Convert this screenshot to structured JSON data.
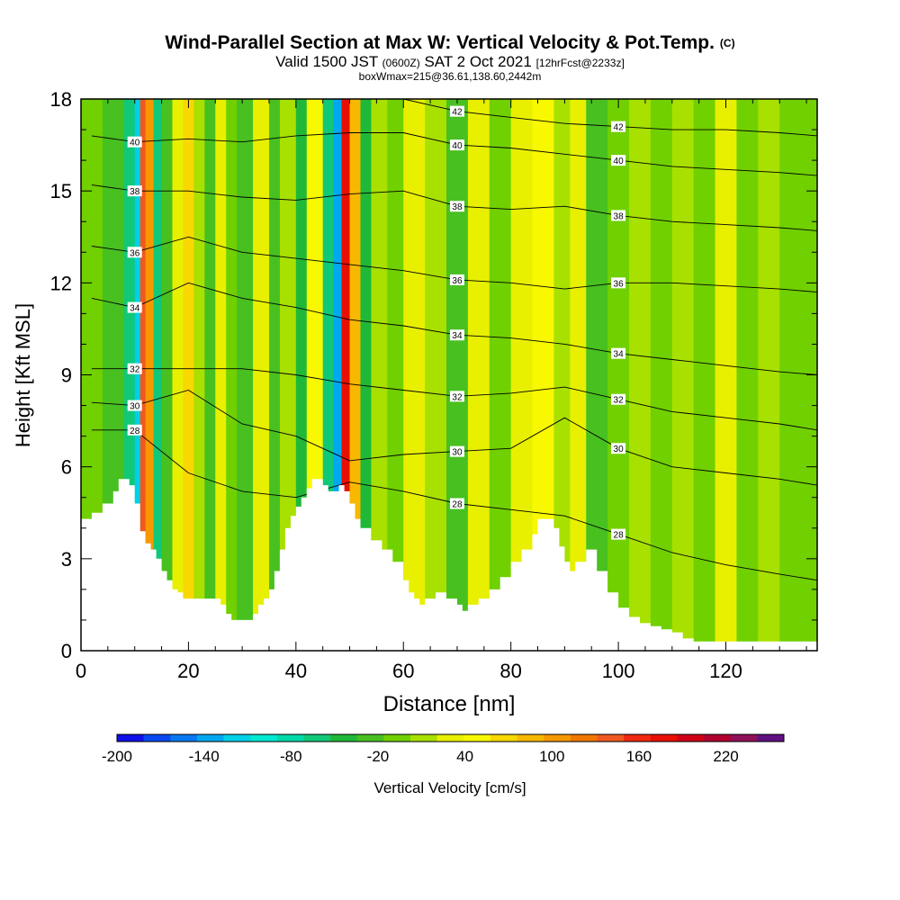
{
  "title": {
    "main": "Wind-Parallel Section at Max W: Vertical Velocity & Pot.Temp.",
    "copyright": "(C)",
    "valid_prefix": "Valid 1500 JST",
    "valid_utc": "(0600Z)",
    "valid_date": "SAT 2 Oct 2021",
    "forecast": "[12hrFcst@2233z]",
    "box_info": "boxWmax=215@36.61,138.60,2442m"
  },
  "chart_data": {
    "type": "heatmap",
    "xlabel": "Distance [nm]",
    "ylabel": "Height [Kft MSL]",
    "xlim": [
      0,
      137
    ],
    "ylim": [
      0,
      18
    ],
    "x_ticks": [
      0,
      20,
      40,
      60,
      80,
      100,
      120
    ],
    "y_ticks": [
      0,
      3,
      6,
      9,
      12,
      15,
      18
    ],
    "colorbar": {
      "label": "Vertical Velocity [cm/s]",
      "tick_labels": [
        "-200",
        "-140",
        "-80",
        "-20",
        "40",
        "100",
        "160",
        "220"
      ],
      "tick_values": [
        -200,
        -140,
        -80,
        -20,
        40,
        100,
        160,
        220
      ],
      "min": -200,
      "max": 260,
      "step": 20,
      "colors": [
        "#1010e8",
        "#0848f0",
        "#0878f0",
        "#00a8f0",
        "#00d0e8",
        "#00e8d0",
        "#00d8a8",
        "#10c878",
        "#20b838",
        "#48c020",
        "#70d000",
        "#a8e000",
        "#e8f000",
        "#f8f800",
        "#f8d800",
        "#f8b800",
        "#f89800",
        "#f07800",
        "#f05820",
        "#f02810",
        "#e81000",
        "#d00018",
        "#b00030",
        "#901058",
        "#601080"
      ]
    },
    "terrain_profile": {
      "x": [
        0,
        2,
        4,
        6,
        7,
        8,
        9,
        10,
        11,
        12,
        13,
        14,
        15,
        16,
        17,
        18,
        19,
        20,
        23,
        26,
        27,
        28,
        30,
        32,
        33,
        34,
        35,
        36,
        37,
        38,
        39,
        40,
        41,
        42,
        43,
        44,
        45,
        46,
        47,
        48,
        49,
        50,
        51,
        52,
        54,
        56,
        58,
        60,
        61,
        62,
        63,
        64,
        66,
        68,
        70,
        71,
        72,
        74,
        76,
        78,
        80,
        82,
        84,
        85,
        86,
        88,
        89,
        90,
        91,
        92,
        94,
        95,
        96,
        98,
        100,
        102,
        104,
        106,
        108,
        110,
        112,
        114,
        116,
        118,
        120,
        125,
        130,
        137
      ],
      "y": [
        4.3,
        4.5,
        4.8,
        5.2,
        5.6,
        5.6,
        5.4,
        4.8,
        3.9,
        3.5,
        3.3,
        3.0,
        2.6,
        2.3,
        2.0,
        1.9,
        1.7,
        1.7,
        1.7,
        1.5,
        1.2,
        1.0,
        1.0,
        1.2,
        1.5,
        1.7,
        2.0,
        2.6,
        3.3,
        4.0,
        4.4,
        4.7,
        5.0,
        5.3,
        5.6,
        5.6,
        5.4,
        5.2,
        5.2,
        5.4,
        5.2,
        4.8,
        4.3,
        4.0,
        3.6,
        3.3,
        2.9,
        2.3,
        1.9,
        1.7,
        1.5,
        1.7,
        1.9,
        1.7,
        1.5,
        1.3,
        1.5,
        1.7,
        2.0,
        2.4,
        2.9,
        3.3,
        3.8,
        4.3,
        4.3,
        4.0,
        3.4,
        2.9,
        2.6,
        2.9,
        3.3,
        3.3,
        2.6,
        1.9,
        1.4,
        1.1,
        0.9,
        0.8,
        0.7,
        0.6,
        0.4,
        0.3,
        0.3,
        0.3,
        0.3,
        0.3,
        0.3,
        0.3
      ]
    },
    "w_field_columns": [
      {
        "x": [
          0,
          4
        ],
        "value": 0
      },
      {
        "x": [
          4,
          8
        ],
        "value": -20
      },
      {
        "x": [
          8,
          10
        ],
        "value": -60
      },
      {
        "x": [
          10,
          11
        ],
        "value": -120
      },
      {
        "x": [
          11,
          12
        ],
        "value": 160
      },
      {
        "x": [
          12,
          13.5
        ],
        "value": 120
      },
      {
        "x": [
          13.5,
          15
        ],
        "value": -60
      },
      {
        "x": [
          15,
          17
        ],
        "value": -20
      },
      {
        "x": [
          17,
          19
        ],
        "value": 40
      },
      {
        "x": [
          19,
          21
        ],
        "value": 80
      },
      {
        "x": [
          21,
          23
        ],
        "value": 20
      },
      {
        "x": [
          23,
          25
        ],
        "value": -20
      },
      {
        "x": [
          25,
          27
        ],
        "value": 40
      },
      {
        "x": [
          27,
          29
        ],
        "value": 0
      },
      {
        "x": [
          29,
          32
        ],
        "value": -20
      },
      {
        "x": [
          32,
          35
        ],
        "value": 40
      },
      {
        "x": [
          35,
          37
        ],
        "value": -20
      },
      {
        "x": [
          37,
          40
        ],
        "value": 20
      },
      {
        "x": [
          40,
          42
        ],
        "value": -40
      },
      {
        "x": [
          42,
          45
        ],
        "value": 60
      },
      {
        "x": [
          45,
          47
        ],
        "value": -60
      },
      {
        "x": [
          47,
          48.5
        ],
        "value": -140
      },
      {
        "x": [
          48.5,
          50
        ],
        "value": 200
      },
      {
        "x": [
          50,
          52
        ],
        "value": 100
      },
      {
        "x": [
          52,
          54
        ],
        "value": -40
      },
      {
        "x": [
          54,
          57
        ],
        "value": 20
      },
      {
        "x": [
          57,
          60
        ],
        "value": 0
      },
      {
        "x": [
          60,
          64
        ],
        "value": 40
      },
      {
        "x": [
          64,
          68
        ],
        "value": 20
      },
      {
        "x": [
          68,
          72
        ],
        "value": -20
      },
      {
        "x": [
          72,
          76
        ],
        "value": 40
      },
      {
        "x": [
          76,
          80
        ],
        "value": 0
      },
      {
        "x": [
          80,
          84
        ],
        "value": 40
      },
      {
        "x": [
          84,
          88
        ],
        "value": 60
      },
      {
        "x": [
          88,
          91
        ],
        "value": 20
      },
      {
        "x": [
          91,
          94
        ],
        "value": 40
      },
      {
        "x": [
          94,
          98
        ],
        "value": -20
      },
      {
        "x": [
          98,
          102
        ],
        "value": 0
      },
      {
        "x": [
          102,
          106
        ],
        "value": 20
      },
      {
        "x": [
          106,
          110
        ],
        "value": 0
      },
      {
        "x": [
          110,
          114
        ],
        "value": 20
      },
      {
        "x": [
          114,
          118
        ],
        "value": 0
      },
      {
        "x": [
          118,
          122
        ],
        "value": 40
      },
      {
        "x": [
          122,
          126
        ],
        "value": 0
      },
      {
        "x": [
          126,
          130
        ],
        "value": 20
      },
      {
        "x": [
          130,
          137
        ],
        "value": 0
      }
    ],
    "theta_contours": [
      {
        "label": "28",
        "x": [
          2,
          10,
          20,
          30,
          40,
          50,
          60,
          70,
          80,
          90,
          100,
          110,
          120,
          130,
          137
        ],
        "y": [
          7.2,
          7.2,
          5.8,
          5.2,
          5.0,
          5.5,
          5.2,
          4.8,
          4.6,
          4.4,
          3.8,
          3.2,
          2.8,
          2.5,
          2.3
        ]
      },
      {
        "label": "30",
        "x": [
          2,
          10,
          20,
          30,
          40,
          50,
          60,
          70,
          80,
          90,
          100,
          110,
          120,
          130,
          137
        ],
        "y": [
          8.1,
          8.0,
          8.5,
          7.4,
          7.0,
          6.2,
          6.4,
          6.5,
          6.6,
          7.6,
          6.6,
          6.0,
          5.8,
          5.6,
          5.4
        ]
      },
      {
        "label": "32",
        "x": [
          2,
          10,
          20,
          30,
          40,
          50,
          60,
          70,
          80,
          90,
          100,
          110,
          120,
          130,
          137
        ],
        "y": [
          9.2,
          9.2,
          9.2,
          9.2,
          9.0,
          8.7,
          8.5,
          8.3,
          8.4,
          8.6,
          8.2,
          7.8,
          7.6,
          7.4,
          7.2
        ]
      },
      {
        "label": "34",
        "x": [
          2,
          10,
          20,
          30,
          40,
          50,
          60,
          70,
          80,
          90,
          100,
          110,
          120,
          130,
          137
        ],
        "y": [
          11.5,
          11.2,
          12.0,
          11.5,
          11.2,
          10.8,
          10.6,
          10.3,
          10.2,
          10.0,
          9.7,
          9.5,
          9.3,
          9.1,
          9.0
        ]
      },
      {
        "label": "36",
        "x": [
          2,
          10,
          20,
          30,
          40,
          50,
          60,
          70,
          80,
          90,
          100,
          110,
          120,
          130,
          137
        ],
        "y": [
          13.2,
          13.0,
          13.5,
          13.0,
          12.8,
          12.6,
          12.4,
          12.1,
          12.0,
          11.8,
          12.0,
          12.0,
          11.9,
          11.8,
          11.7
        ]
      },
      {
        "label": "38",
        "x": [
          2,
          10,
          20,
          30,
          40,
          50,
          60,
          70,
          80,
          90,
          100,
          110,
          120,
          130,
          137
        ],
        "y": [
          15.2,
          15.0,
          15.0,
          14.8,
          14.7,
          14.9,
          15.0,
          14.5,
          14.4,
          14.5,
          14.2,
          14.0,
          13.9,
          13.8,
          13.7
        ]
      },
      {
        "label": "40",
        "x": [
          2,
          10,
          20,
          30,
          40,
          50,
          60,
          70,
          80,
          90,
          100,
          110,
          120,
          130,
          137
        ],
        "y": [
          16.8,
          16.6,
          16.7,
          16.6,
          16.8,
          16.9,
          16.9,
          16.5,
          16.4,
          16.2,
          16.0,
          15.8,
          15.7,
          15.6,
          15.5
        ]
      },
      {
        "label": "42",
        "x": [
          60,
          70,
          80,
          90,
          100,
          110,
          120,
          130,
          137
        ],
        "y": [
          18.0,
          17.6,
          17.4,
          17.2,
          17.1,
          17.0,
          17.0,
          16.9,
          16.8
        ]
      }
    ]
  }
}
